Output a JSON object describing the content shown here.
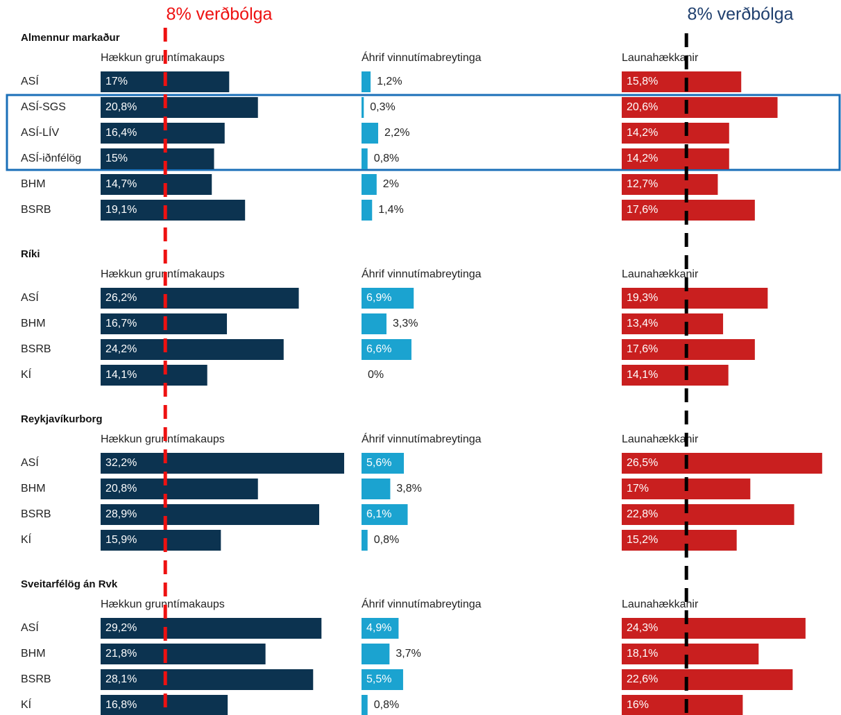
{
  "chart_data": {
    "type": "bar",
    "columns": [
      "Hækkun grunntímakaups",
      "Áhrif vinnutímabreytinga",
      "Launahækkanir"
    ],
    "colors": [
      "#0c3350",
      "#1ba3d0",
      "#c91f1f"
    ],
    "reference_line": {
      "value": 8,
      "labels": [
        "8% verðbólga",
        "8% verðbólga"
      ],
      "line_colors": [
        "#ee1111",
        "#000000"
      ],
      "label_colors": [
        "#ee1111",
        "#1f3f6e"
      ]
    },
    "groups": [
      {
        "name": "Almennur markaður",
        "rows": [
          {
            "name": "ASÍ",
            "values": [
              17,
              1.2,
              15.8
            ],
            "value_labels": [
              "17%",
              "1,2%",
              "15,8%"
            ]
          },
          {
            "name": "ASÍ-SGS",
            "values": [
              20.8,
              0.3,
              20.6
            ],
            "value_labels": [
              "20,8%",
              "0,3%",
              "20,6%"
            ]
          },
          {
            "name": "ASÍ-LÍV",
            "values": [
              16.4,
              2.2,
              14.2
            ],
            "value_labels": [
              "16,4%",
              "2,2%",
              "14,2%"
            ]
          },
          {
            "name": "ASÍ-iðnfélög",
            "values": [
              15,
              0.8,
              14.2
            ],
            "value_labels": [
              "15%",
              "0,8%",
              "14,2%"
            ]
          },
          {
            "name": "BHM",
            "values": [
              14.7,
              2,
              12.7
            ],
            "value_labels": [
              "14,7%",
              "2%",
              "12,7%"
            ]
          },
          {
            "name": "BSRB",
            "values": [
              19.1,
              1.4,
              17.6
            ],
            "value_labels": [
              "19,1%",
              "1,4%",
              "17,6%"
            ]
          }
        ]
      },
      {
        "name": "Ríki",
        "rows": [
          {
            "name": "ASÍ",
            "values": [
              26.2,
              6.9,
              19.3
            ],
            "value_labels": [
              "26,2%",
              "6,9%",
              "19,3%"
            ]
          },
          {
            "name": "BHM",
            "values": [
              16.7,
              3.3,
              13.4
            ],
            "value_labels": [
              "16,7%",
              "3,3%",
              "13,4%"
            ]
          },
          {
            "name": "BSRB",
            "values": [
              24.2,
              6.6,
              17.6
            ],
            "value_labels": [
              "24,2%",
              "6,6%",
              "17,6%"
            ]
          },
          {
            "name": "KÍ",
            "values": [
              14.1,
              0,
              14.1
            ],
            "value_labels": [
              "14,1%",
              "0%",
              "14,1%"
            ]
          }
        ]
      },
      {
        "name": "Reykjavíkurborg",
        "rows": [
          {
            "name": "ASÍ",
            "values": [
              32.2,
              5.6,
              26.5
            ],
            "value_labels": [
              "32,2%",
              "5,6%",
              "26,5%"
            ]
          },
          {
            "name": "BHM",
            "values": [
              20.8,
              3.8,
              17
            ],
            "value_labels": [
              "20,8%",
              "3,8%",
              "17%"
            ]
          },
          {
            "name": "BSRB",
            "values": [
              28.9,
              6.1,
              22.8
            ],
            "value_labels": [
              "28,9%",
              "6,1%",
              "22,8%"
            ]
          },
          {
            "name": "KÍ",
            "values": [
              15.9,
              0.8,
              15.2
            ],
            "value_labels": [
              "15,9%",
              "0,8%",
              "15,2%"
            ]
          }
        ]
      },
      {
        "name": "Sveitarfélög án Rvk",
        "rows": [
          {
            "name": "ASÍ",
            "values": [
              29.2,
              4.9,
              24.3
            ],
            "value_labels": [
              "29,2%",
              "4,9%",
              "24,3%"
            ]
          },
          {
            "name": "BHM",
            "values": [
              21.8,
              3.7,
              18.1
            ],
            "value_labels": [
              "21,8%",
              "3,7%",
              "18,1%"
            ]
          },
          {
            "name": "BSRB",
            "values": [
              28.1,
              5.5,
              22.6
            ],
            "value_labels": [
              "28,1%",
              "5,5%",
              "22,6%"
            ]
          },
          {
            "name": "KÍ",
            "values": [
              16.8,
              0.8,
              16
            ],
            "value_labels": [
              "16,8%",
              "0,8%",
              "16%"
            ]
          }
        ]
      }
    ]
  }
}
